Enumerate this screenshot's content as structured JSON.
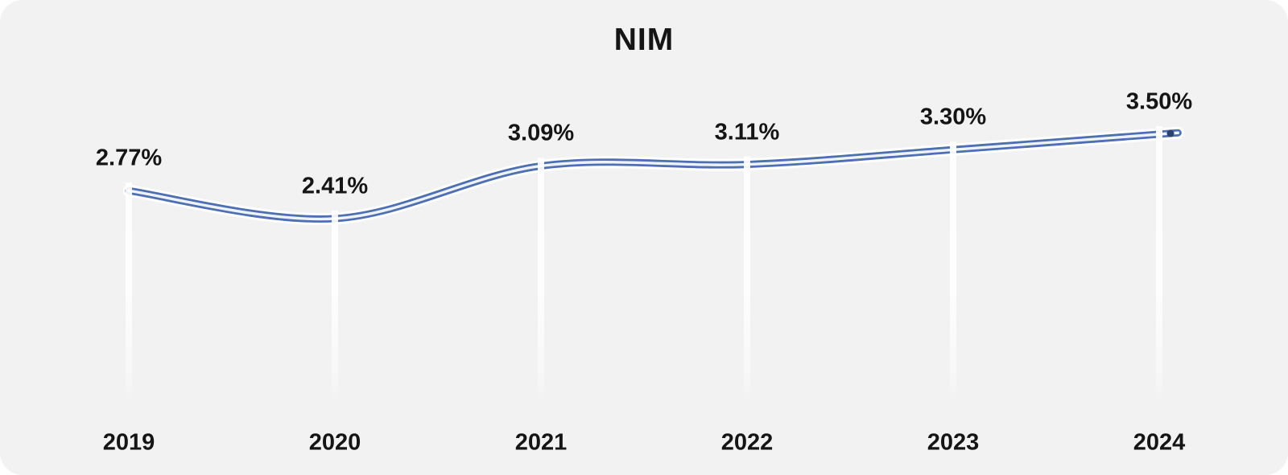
{
  "chart_data": {
    "type": "line",
    "title": "NIM",
    "categories": [
      "2019",
      "2020",
      "2021",
      "2022",
      "2023",
      "2024"
    ],
    "values": [
      2.77,
      2.41,
      3.09,
      3.11,
      3.3,
      3.5
    ],
    "point_labels": [
      "2.77%",
      "2.41%",
      "3.09%",
      "3.11%",
      "3.30%",
      "3.50%"
    ],
    "xlabel": "",
    "ylabel": "",
    "ylim": [
      2.2,
      3.7
    ],
    "grid": false,
    "legend": "none",
    "line_style": "smooth double line (blue-white-blue) with white outer halo",
    "drop_lines": "white vertical drop line below each data point, fading toward bottom",
    "colors": {
      "line": "#4e6fb2",
      "line_inner": "#eef3fa",
      "halo": "#ffffff",
      "drop_line": "#ffffff",
      "end_marker": "#2b4170",
      "background": "#f2f2f2",
      "text": "#151515"
    }
  }
}
